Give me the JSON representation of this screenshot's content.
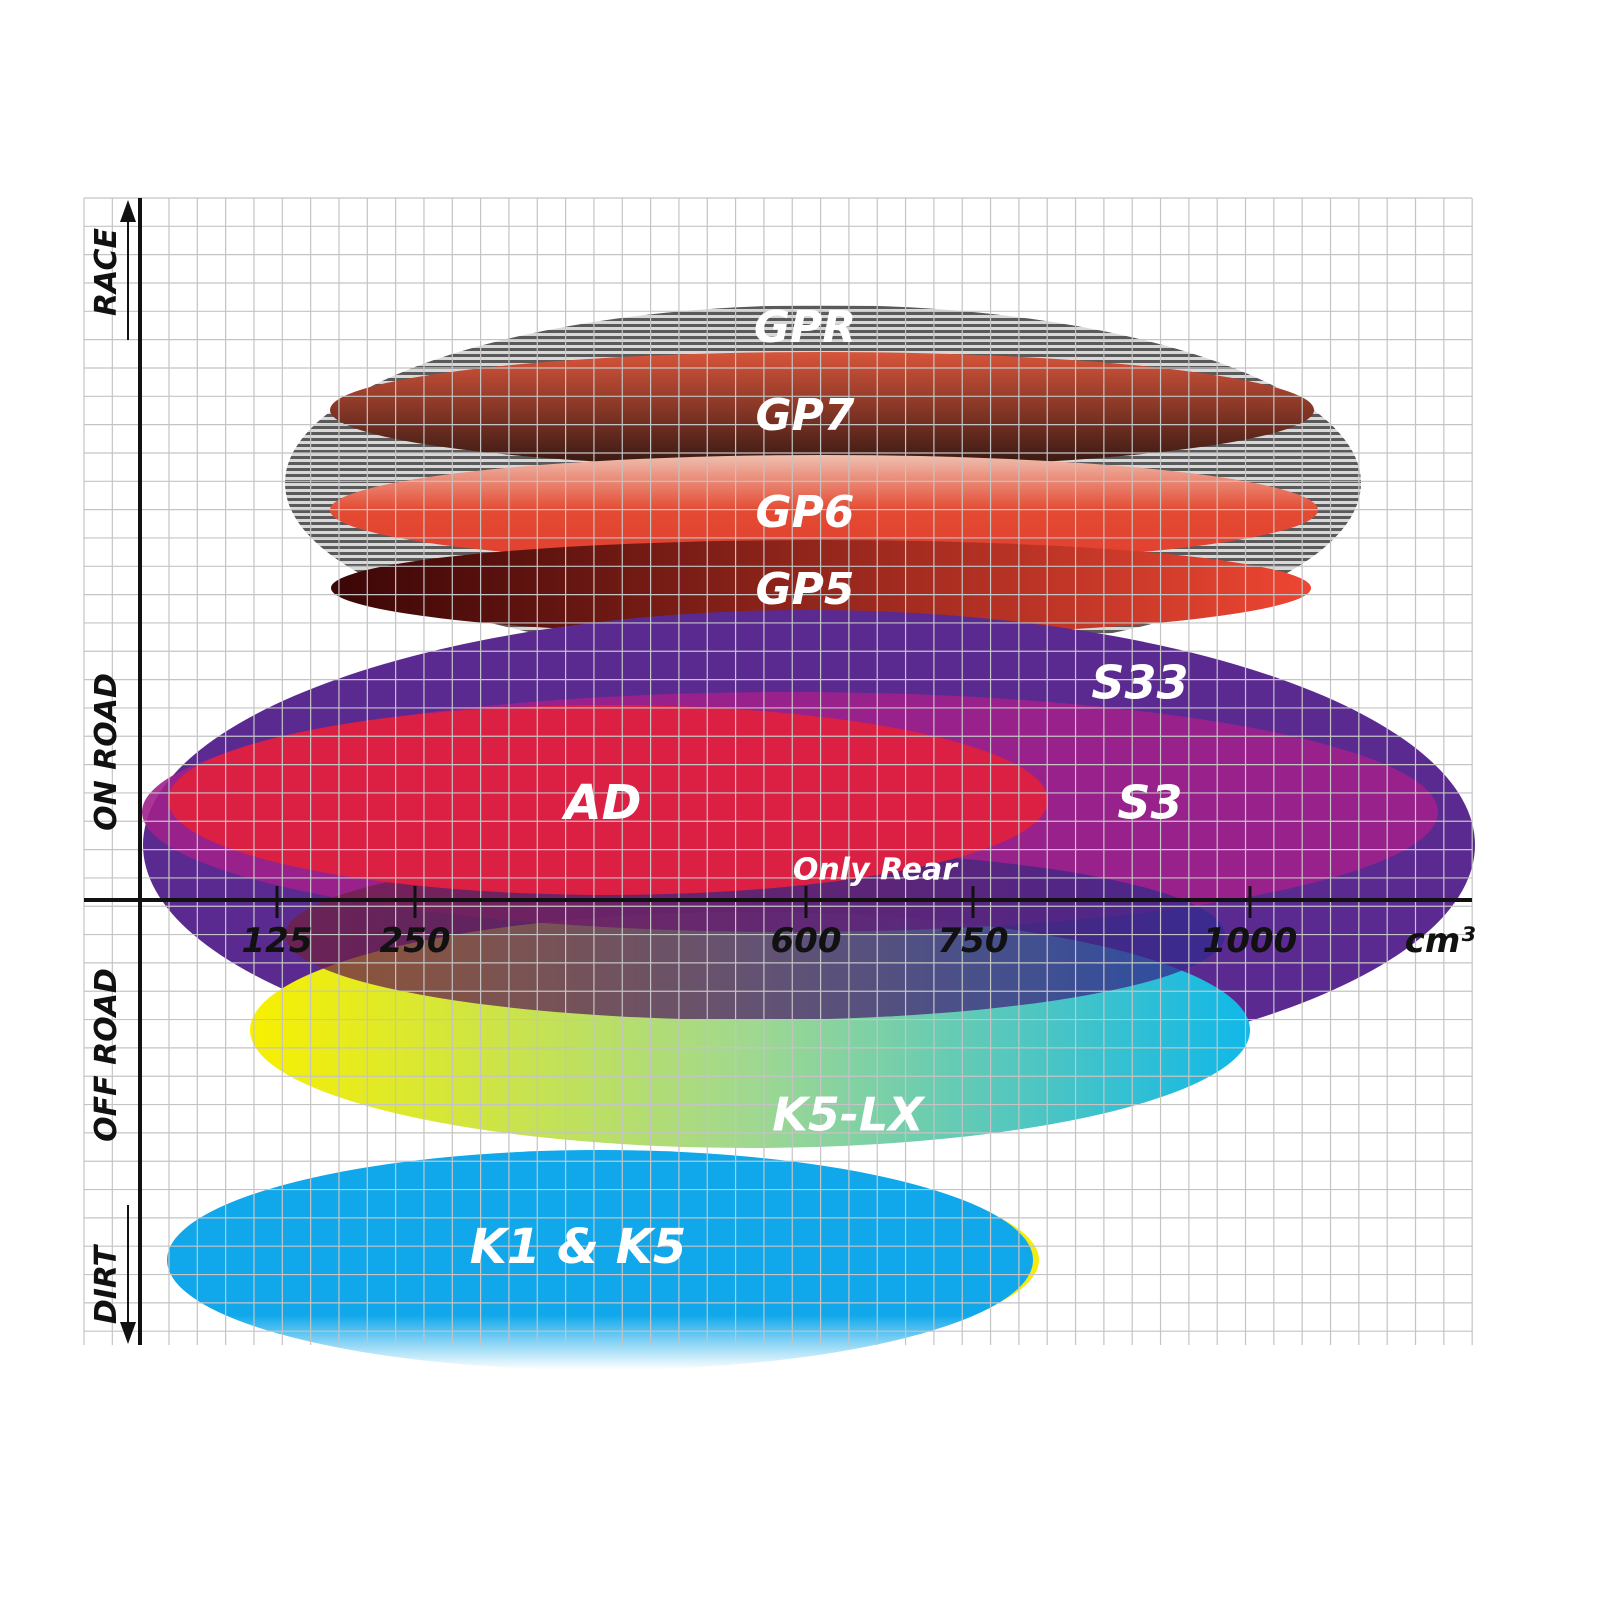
{
  "chart_data": {
    "type": "diagram",
    "x_axis": {
      "unit": "cm³",
      "ticks": [
        "125",
        "250",
        "600",
        "750",
        "1000"
      ]
    },
    "y_axis": {
      "labels": [
        "RACE",
        "ON ROAD",
        "OFF ROAD",
        "DIRT"
      ]
    },
    "grid": true,
    "series": [
      {
        "name": "GPR",
        "cc_range": [
          70,
          1050
        ],
        "color": "#9a9a9a",
        "pattern": "striped"
      },
      {
        "name": "GP7",
        "cc_range": [
          110,
          1020
        ],
        "color": "#c9452c"
      },
      {
        "name": "GP6",
        "cc_range": [
          110,
          1020
        ],
        "color": "#e4482f"
      },
      {
        "name": "GP5",
        "cc_range": [
          110,
          1020
        ],
        "color": "#a01818"
      },
      {
        "name": "S33",
        "cc_range": [
          0,
          1200
        ],
        "color": "#5b2a90"
      },
      {
        "name": "S3",
        "cc_range": [
          0,
          1150
        ],
        "color": "#a0208c"
      },
      {
        "name": "AD",
        "cc_range": [
          20,
          800
        ],
        "color": "#dc2044"
      },
      {
        "name": "Only Rear",
        "cc_range": [
          100,
          1000
        ],
        "color": "#6a2a70"
      },
      {
        "name": "K5-LX",
        "cc_range": [
          100,
          1000
        ],
        "color": "#1ab8d8"
      },
      {
        "name": "K1 & K5",
        "cc_range": [
          20,
          780
        ],
        "color": "#12a8e8"
      }
    ]
  }
}
